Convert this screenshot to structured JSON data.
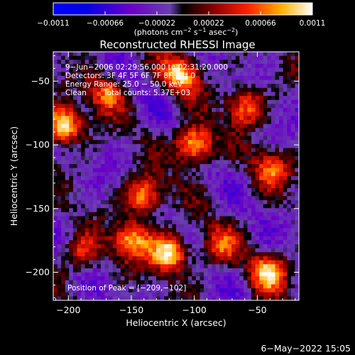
{
  "chart_data": {
    "type": "heatmap",
    "title": "Reconstructed RHESSI Image",
    "xlabel": "Heliocentric X (arcsec)",
    "ylabel": "Heliocentric Y (arcsec)",
    "xlim": [
      -212,
      -17
    ],
    "ylim": [
      -222,
      -27
    ],
    "x_ticks": [
      -200,
      -150,
      -100,
      -50
    ],
    "y_ticks": [
      -50,
      -100,
      -150,
      -200
    ],
    "x_tick_labels": [
      "−200",
      "−150",
      "−100",
      "−50"
    ],
    "y_tick_labels": [
      "−50",
      "−100",
      "−150",
      "−200"
    ],
    "colorbar": {
      "range": [
        -0.0011,
        0.0011
      ],
      "ticks": [
        -0.0011,
        -0.00066,
        -0.00022,
        0.00022,
        0.00066,
        0.0011
      ],
      "tick_labels": [
        "−0.0011",
        "−0.00066",
        "−0.00022",
        "0.00022",
        "0.00066",
        "0.0011"
      ],
      "unit_prefix": "(photons cm",
      "unit_exp1": "−2",
      "unit_mid": " s",
      "unit_exp2": "−1",
      "unit_mid2": " asec",
      "unit_exp3": "−2",
      "unit_suffix": ")"
    },
    "annotations": {
      "time_range": "9−Jun−2006 02:29:56.000 to 02:31:20.000",
      "detectors": "Detectors: 3F 4F 5F 6F 7F 8F, Att 0",
      "energy": "Energy Range: 25.0 − 50.0 keV",
      "clean_label": "Clean",
      "total_counts": "Total counts: 5.37E+03",
      "peak": "Position of Peak = [−209,−102]"
    },
    "hot_spots": [
      {
        "x": -204,
        "y": -85,
        "level": 1.0
      },
      {
        "x": -170,
        "y": -60,
        "level": 0.6
      },
      {
        "x": -110,
        "y": -45,
        "level": 0.8
      },
      {
        "x": -100,
        "y": -100,
        "level": 1.0
      },
      {
        "x": -60,
        "y": -70,
        "level": 0.7
      },
      {
        "x": -40,
        "y": -120,
        "level": 0.6
      },
      {
        "x": -140,
        "y": -140,
        "level": 0.8
      },
      {
        "x": -120,
        "y": -185,
        "level": 1.0
      },
      {
        "x": -150,
        "y": -175,
        "level": 0.8
      },
      {
        "x": -40,
        "y": -200,
        "level": 0.75
      },
      {
        "x": -190,
        "y": -185,
        "level": 0.5
      },
      {
        "x": -80,
        "y": -180,
        "level": 0.5
      }
    ],
    "grid": false
  },
  "footer": {
    "timestamp": "6−May−2022 15:05"
  }
}
